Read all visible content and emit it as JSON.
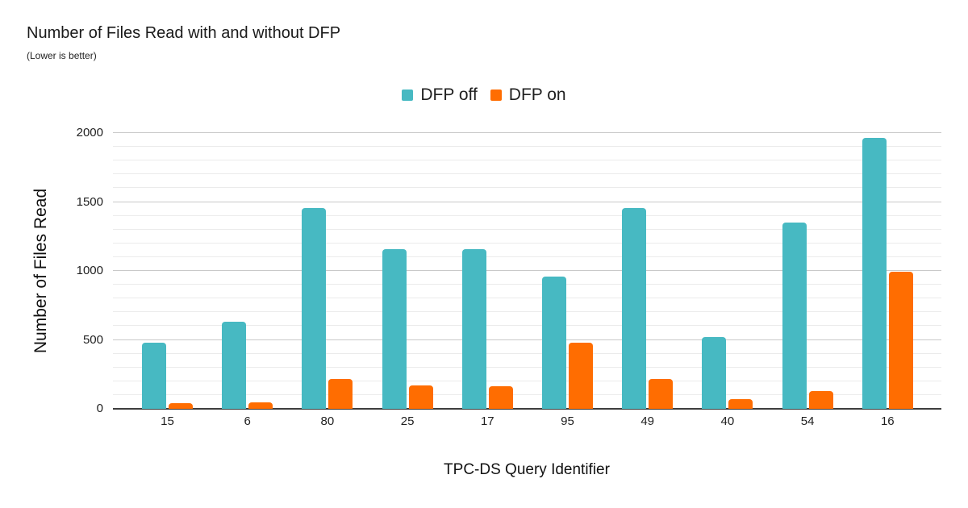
{
  "header": {
    "title": "Number of Files Read with and without DFP",
    "subtitle": "(Lower is better)"
  },
  "chart_data": {
    "type": "bar",
    "title": "Number of Files Read with and without DFP",
    "subtitle": "(Lower is better)",
    "xlabel": "TPC-DS Query Identifier",
    "ylabel": "Number of Files Read",
    "categories": [
      "15",
      "6",
      "80",
      "25",
      "17",
      "95",
      "49",
      "40",
      "54",
      "16"
    ],
    "series": [
      {
        "name": "DFP off",
        "color": "#47B9C2",
        "values": [
          480,
          630,
          1455,
          1160,
          1160,
          960,
          1455,
          520,
          1350,
          1965
        ]
      },
      {
        "name": "DFP on",
        "color": "#FF6D01",
        "values": [
          42,
          48,
          215,
          168,
          162,
          480,
          215,
          70,
          130,
          995
        ]
      }
    ],
    "ylim": [
      0,
      2000
    ],
    "yticks": [
      0,
      500,
      1000,
      1500,
      2000
    ],
    "minor_grid_step": 100,
    "major_grid_step": 500,
    "grid": true,
    "legend_position": "top-center",
    "background": "#ffffff"
  }
}
